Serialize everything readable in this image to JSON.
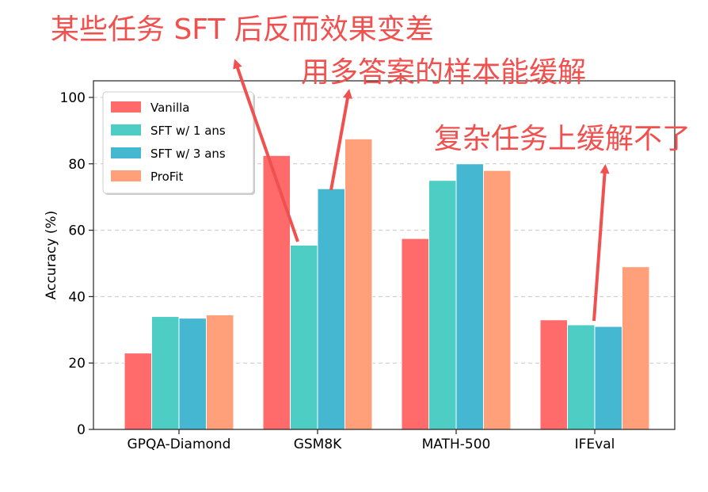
{
  "annotations": {
    "a1": "某些任务 SFT 后反而效果变差",
    "a2": "用多答案的样本能缓解",
    "a3": "复杂任务上缓解不了"
  },
  "colors": {
    "annotation": "#f0514f",
    "arrow": "#f0514f"
  },
  "chart_data": {
    "type": "bar",
    "categories": [
      "GPQA-Diamond",
      "GSM8K",
      "MATH-500",
      "IFEval"
    ],
    "series": [
      {
        "name": "Vanilla",
        "color": "#ff6b6b",
        "values": [
          23,
          82.5,
          57.5,
          33
        ]
      },
      {
        "name": "SFT w/ 1 ans",
        "color": "#4ecdc4",
        "values": [
          34,
          55.5,
          75,
          31.5
        ]
      },
      {
        "name": "SFT w/ 3 ans",
        "color": "#45b7d1",
        "values": [
          33.5,
          72.5,
          80,
          31
        ]
      },
      {
        "name": "ProFit",
        "color": "#ffa07a",
        "values": [
          34.5,
          87.5,
          78,
          49
        ]
      }
    ],
    "title": "",
    "xlabel": "",
    "ylabel": "Accuracy (%)",
    "ylim": [
      0,
      105
    ],
    "yticks": [
      0,
      20,
      40,
      60,
      80,
      100
    ],
    "grid": true,
    "legend": "top-left"
  }
}
